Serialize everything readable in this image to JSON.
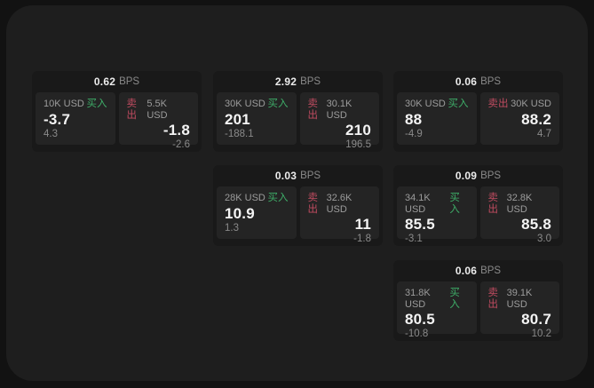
{
  "colors": {
    "backdrop": "#121212",
    "surface": "#1e1e1e",
    "card_bg": "#191919",
    "panel_bg": "#242424",
    "buy_green": "#3ead68",
    "sell_red": "#c04b60",
    "primary_text": "#f4f4f4",
    "muted_text": "#8a8a8a"
  },
  "unit_label": "BPS",
  "cards": [
    {
      "spread": "0.62",
      "unit": "BPS",
      "buy": {
        "amount": "10K USD",
        "label": "买入",
        "price": "-3.7",
        "delta": "4.3"
      },
      "sell": {
        "label": "卖出",
        "amount": "5.5K USD",
        "price": "-1.8",
        "delta": "-2.6"
      }
    },
    {
      "spread": "2.92",
      "unit": "BPS",
      "buy": {
        "amount": "30K USD",
        "label": "买入",
        "price": "201",
        "delta": "-188.1"
      },
      "sell": {
        "label": "卖出",
        "amount": "30.1K USD",
        "price": "210",
        "delta": "196.5"
      }
    },
    {
      "spread": "0.06",
      "unit": "BPS",
      "buy": {
        "amount": "30K USD",
        "label": "买入",
        "price": "88",
        "delta": "-4.9"
      },
      "sell": {
        "label": "卖出",
        "amount": "30K USD",
        "price": "88.2",
        "delta": "4.7"
      }
    },
    {
      "spread": "0.03",
      "unit": "BPS",
      "buy": {
        "amount": "28K USD",
        "label": "买入",
        "price": "10.9",
        "delta": "1.3"
      },
      "sell": {
        "label": "卖出",
        "amount": "32.6K USD",
        "price": "11",
        "delta": "-1.8"
      }
    },
    {
      "spread": "0.09",
      "unit": "BPS",
      "buy": {
        "amount": "34.1K USD",
        "label": "买入",
        "price": "85.5",
        "delta": "-3.1"
      },
      "sell": {
        "label": "卖出",
        "amount": "32.8K USD",
        "price": "85.8",
        "delta": "3.0"
      }
    },
    {
      "spread": "0.06",
      "unit": "BPS",
      "buy": {
        "amount": "31.8K USD",
        "label": "买入",
        "price": "80.5",
        "delta": "-10.8"
      },
      "sell": {
        "label": "卖出",
        "amount": "39.1K USD",
        "price": "80.7",
        "delta": "10.2"
      }
    }
  ]
}
